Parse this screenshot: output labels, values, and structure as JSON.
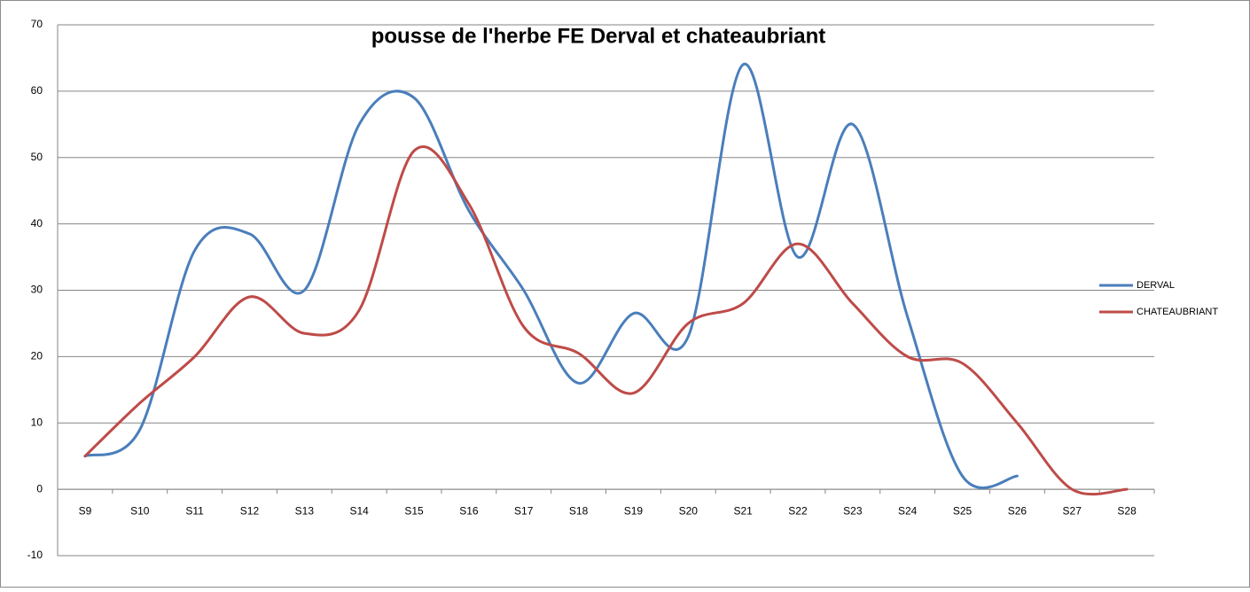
{
  "chart_data": {
    "type": "line",
    "title": "pousse de l'herbe FE Derval et chateaubriant",
    "categories": [
      "S9",
      "S10",
      "S11",
      "S12",
      "S13",
      "S14",
      "S15",
      "S16",
      "S17",
      "S18",
      "S19",
      "S20",
      "S21",
      "S22",
      "S23",
      "S24",
      "S25",
      "S26",
      "S27",
      "S28"
    ],
    "series": [
      {
        "name": "DERVAL",
        "color": "#4a7ebb",
        "values": [
          5,
          9,
          36,
          38.5,
          30,
          55,
          59,
          42,
          30,
          16,
          26.5,
          23,
          64,
          35,
          55,
          26,
          2,
          2,
          null,
          null
        ]
      },
      {
        "name": "CHATEAUBRIANT",
        "color": "#be4b48",
        "values": [
          5,
          13,
          20,
          29,
          23.5,
          27,
          51,
          43,
          24.5,
          20.5,
          14.5,
          25,
          28,
          37,
          28,
          20,
          19,
          10,
          0,
          0
        ]
      }
    ],
    "ylim": [
      -10,
      70
    ],
    "yticks": [
      -10,
      0,
      10,
      20,
      30,
      40,
      50,
      60,
      70
    ],
    "grid": true,
    "smooth": true,
    "legend": "right"
  }
}
